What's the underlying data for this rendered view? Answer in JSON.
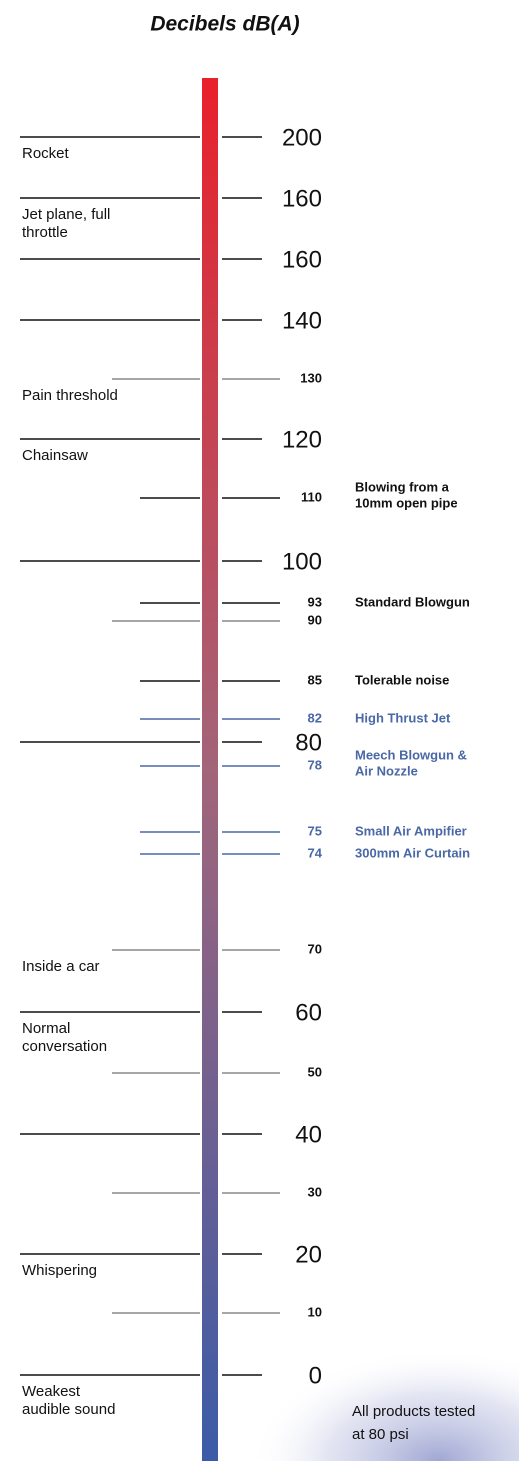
{
  "title": "Decibels dB(A)",
  "rows": [
    {
      "tick": "200",
      "note": [
        "Rocket"
      ]
    },
    {
      "tick": "160",
      "note": [
        "Jet plane, full",
        "throttle"
      ]
    },
    {
      "tick": "160"
    },
    {
      "tick": "140"
    },
    {
      "tick": "130",
      "note": [
        "Pain threshold"
      ]
    },
    {
      "tick": "120",
      "note": [
        "Chainsaw"
      ]
    },
    {
      "tick": "110",
      "detail": [
        "Blowing from a",
        "10mm open pipe"
      ]
    },
    {
      "tick": "100"
    },
    {
      "tick": "93",
      "detail": [
        "Standard Blowgun"
      ]
    },
    {
      "tick": "90"
    },
    {
      "tick": "85",
      "detail": [
        "Tolerable noise"
      ]
    },
    {
      "tick": "82",
      "detail": [
        "High Thrust Jet"
      ]
    },
    {
      "tick": "80"
    },
    {
      "tick": "78",
      "detail": [
        "Meech Blowgun &",
        "Air Nozzle"
      ]
    },
    {
      "tick": "75",
      "detail": [
        "Small Air Ampifier"
      ]
    },
    {
      "tick": "74",
      "detail": [
        "300mm Air Curtain"
      ]
    },
    {
      "tick": "70",
      "note": [
        "Inside a car"
      ]
    },
    {
      "tick": "60",
      "note": [
        "Normal",
        "conversation"
      ]
    },
    {
      "tick": "50"
    },
    {
      "tick": "40"
    },
    {
      "tick": "30"
    },
    {
      "tick": "20",
      "note": [
        "Whispering"
      ]
    },
    {
      "tick": "10"
    },
    {
      "tick": "0",
      "note": [
        "Weakest",
        "audible sound"
      ]
    }
  ],
  "footer": [
    "All products tested",
    "at 80 psi"
  ]
}
